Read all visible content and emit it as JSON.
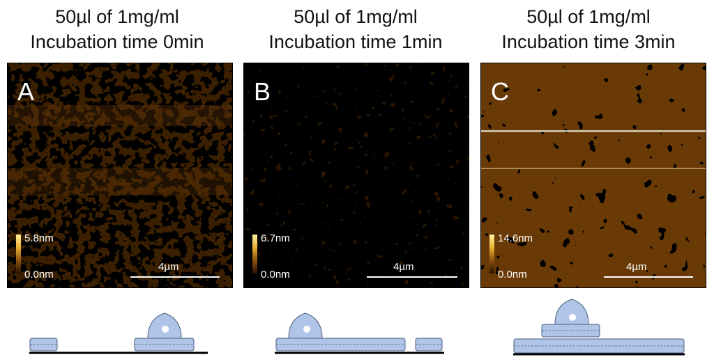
{
  "panels": [
    {
      "title1": "50µl of 1mg/ml",
      "title2": "Incubation time 0min",
      "letter": "A",
      "scale_max": "5.8nm",
      "scale_min": "0.0nm",
      "scalebar": "4µm"
    },
    {
      "title1": "50µl of 1mg/ml",
      "title2": "Incubation time 1min",
      "letter": "B",
      "scale_max": "6.7nm",
      "scale_min": "0.0nm",
      "scalebar": "4µm"
    },
    {
      "title1": "50µl of 1mg/ml",
      "title2": "Incubation time 3min",
      "letter": "C",
      "scale_max": "14.6nm",
      "scale_min": "0.0nm",
      "scalebar": "4µm"
    }
  ],
  "colors": {
    "afm_dark": "#3a1f00",
    "afm_mid": "#8a5a10",
    "afm_light": "#f0c040",
    "schematic_fill": "#b0c4e8",
    "schematic_stroke": "#4a5f80"
  }
}
